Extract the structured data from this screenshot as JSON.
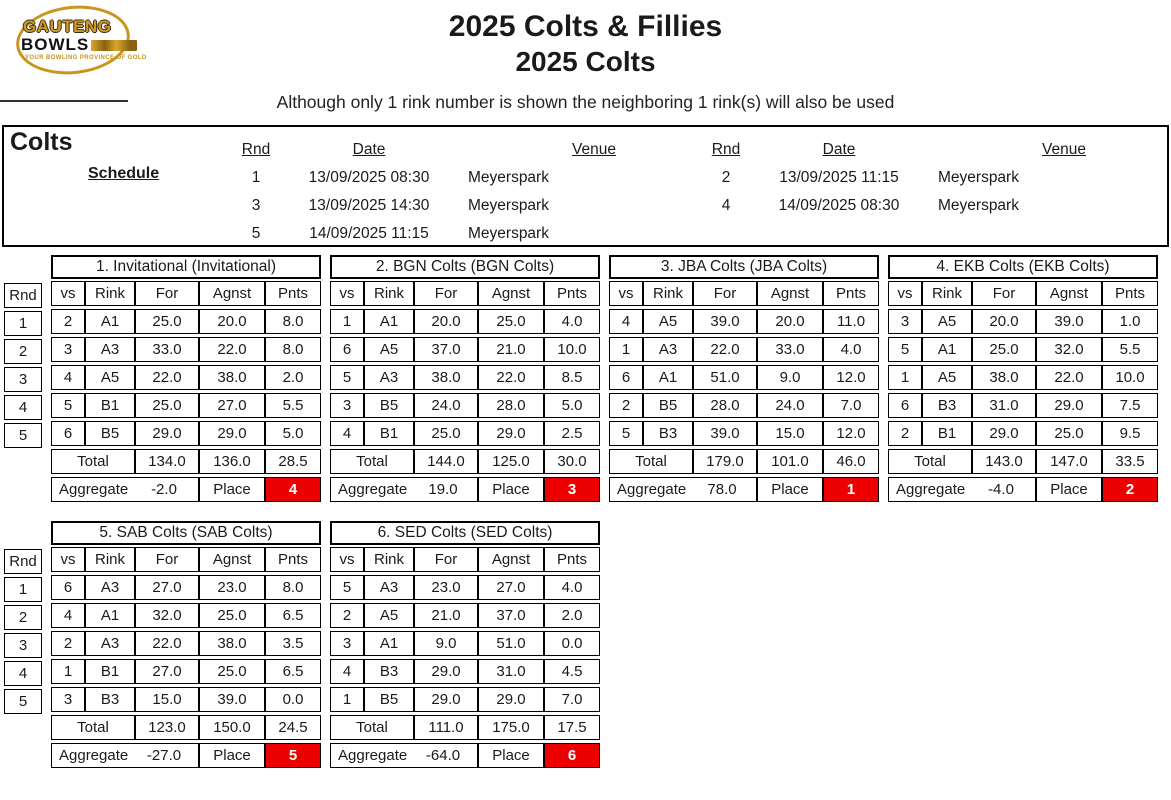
{
  "logo": {
    "line1": "GAUTENG",
    "line2": "BOWLS",
    "tagline": "YOUR BOWLING PROVINCE OF GOLD"
  },
  "header": {
    "title": "2025 Colts & Fillies",
    "subtitle": "2025 Colts",
    "note": "Although only 1 rink number is shown the neighboring 1 rink(s) will also be used"
  },
  "schedule": {
    "section_label": "Colts",
    "schedule_label": "Schedule",
    "col_headers": {
      "rnd": "Rnd",
      "date": "Date",
      "venue": "Venue"
    },
    "left_rows": [
      {
        "rnd": "1",
        "date": "13/09/2025 08:30",
        "venue": "Meyerspark"
      },
      {
        "rnd": "3",
        "date": "13/09/2025 14:30",
        "venue": "Meyerspark"
      },
      {
        "rnd": "5",
        "date": "14/09/2025 11:15",
        "venue": "Meyerspark"
      }
    ],
    "right_rows": [
      {
        "rnd": "2",
        "date": "13/09/2025 11:15",
        "venue": "Meyerspark"
      },
      {
        "rnd": "4",
        "date": "14/09/2025 08:30",
        "venue": "Meyerspark"
      }
    ]
  },
  "results": {
    "rnd_header": "Rnd",
    "rounds": [
      "1",
      "2",
      "3",
      "4",
      "5"
    ],
    "col_headers": [
      "vs",
      "Rink",
      "For",
      "Agnst",
      "Pnts"
    ],
    "total_label": "Total",
    "aggregate_label": "Aggregate",
    "place_label": "Place",
    "place_color": "#ee0000",
    "teams": [
      {
        "title": "1. Invitational (Invitational)",
        "rows": [
          [
            "2",
            "A1",
            "25.0",
            "20.0",
            "8.0"
          ],
          [
            "3",
            "A3",
            "33.0",
            "22.0",
            "8.0"
          ],
          [
            "4",
            "A5",
            "22.0",
            "38.0",
            "2.0"
          ],
          [
            "5",
            "B1",
            "25.0",
            "27.0",
            "5.5"
          ],
          [
            "6",
            "B5",
            "29.0",
            "29.0",
            "5.0"
          ]
        ],
        "total": [
          "134.0",
          "136.0",
          "28.5"
        ],
        "aggregate": "-2.0",
        "place": "4"
      },
      {
        "title": "2. BGN Colts (BGN Colts)",
        "rows": [
          [
            "1",
            "A1",
            "20.0",
            "25.0",
            "4.0"
          ],
          [
            "6",
            "A5",
            "37.0",
            "21.0",
            "10.0"
          ],
          [
            "5",
            "A3",
            "38.0",
            "22.0",
            "8.5"
          ],
          [
            "3",
            "B5",
            "24.0",
            "28.0",
            "5.0"
          ],
          [
            "4",
            "B1",
            "25.0",
            "29.0",
            "2.5"
          ]
        ],
        "total": [
          "144.0",
          "125.0",
          "30.0"
        ],
        "aggregate": "19.0",
        "place": "3"
      },
      {
        "title": "3. JBA Colts (JBA Colts)",
        "rows": [
          [
            "4",
            "A5",
            "39.0",
            "20.0",
            "11.0"
          ],
          [
            "1",
            "A3",
            "22.0",
            "33.0",
            "4.0"
          ],
          [
            "6",
            "A1",
            "51.0",
            "9.0",
            "12.0"
          ],
          [
            "2",
            "B5",
            "28.0",
            "24.0",
            "7.0"
          ],
          [
            "5",
            "B3",
            "39.0",
            "15.0",
            "12.0"
          ]
        ],
        "total": [
          "179.0",
          "101.0",
          "46.0"
        ],
        "aggregate": "78.0",
        "place": "1"
      },
      {
        "title": "4. EKB Colts (EKB Colts)",
        "rows": [
          [
            "3",
            "A5",
            "20.0",
            "39.0",
            "1.0"
          ],
          [
            "5",
            "A1",
            "25.0",
            "32.0",
            "5.5"
          ],
          [
            "1",
            "A5",
            "38.0",
            "22.0",
            "10.0"
          ],
          [
            "6",
            "B3",
            "31.0",
            "29.0",
            "7.5"
          ],
          [
            "2",
            "B1",
            "29.0",
            "25.0",
            "9.5"
          ]
        ],
        "total": [
          "143.0",
          "147.0",
          "33.5"
        ],
        "aggregate": "-4.0",
        "place": "2"
      },
      {
        "title": "5. SAB Colts (SAB Colts)",
        "rows": [
          [
            "6",
            "A3",
            "27.0",
            "23.0",
            "8.0"
          ],
          [
            "4",
            "A1",
            "32.0",
            "25.0",
            "6.5"
          ],
          [
            "2",
            "A3",
            "22.0",
            "38.0",
            "3.5"
          ],
          [
            "1",
            "B1",
            "27.0",
            "25.0",
            "6.5"
          ],
          [
            "3",
            "B3",
            "15.0",
            "39.0",
            "0.0"
          ]
        ],
        "total": [
          "123.0",
          "150.0",
          "24.5"
        ],
        "aggregate": "-27.0",
        "place": "5"
      },
      {
        "title": "6. SED Colts (SED Colts)",
        "rows": [
          [
            "5",
            "A3",
            "23.0",
            "27.0",
            "4.0"
          ],
          [
            "2",
            "A5",
            "21.0",
            "37.0",
            "2.0"
          ],
          [
            "3",
            "A1",
            "9.0",
            "51.0",
            "0.0"
          ],
          [
            "4",
            "B3",
            "29.0",
            "31.0",
            "4.5"
          ],
          [
            "1",
            "B5",
            "29.0",
            "29.0",
            "7.0"
          ]
        ],
        "total": [
          "111.0",
          "175.0",
          "17.5"
        ],
        "aggregate": "-64.0",
        "place": "6"
      }
    ]
  }
}
